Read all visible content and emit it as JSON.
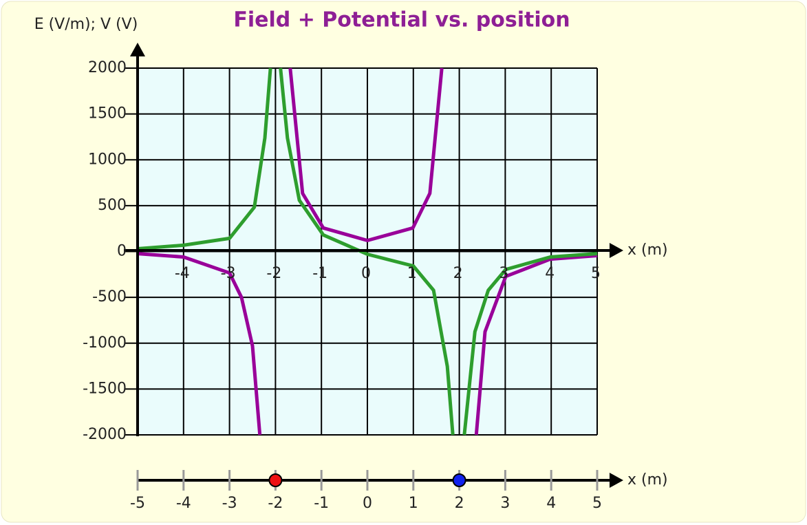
{
  "chart_data": {
    "type": "line",
    "title": "Field + Potential vs. position",
    "y_label": "E (V/m); V (V)",
    "x_label": "x (m)",
    "xlim": [
      -5,
      5
    ],
    "ylim": [
      -2000,
      2000
    ],
    "xticks": [
      -4,
      -3,
      -2,
      -1,
      0,
      1,
      2,
      3,
      4,
      5
    ],
    "yticks": [
      -2000,
      -1500,
      -1000,
      -500,
      0,
      500,
      1000,
      1500,
      2000
    ],
    "grid": true,
    "series": [
      {
        "color": "#990099",
        "x": [
          -5,
          -4,
          -3,
          -2.74,
          -2.5,
          -2.34,
          -2.0,
          -1.68,
          -1.41,
          -0.96,
          0,
          0.99,
          1.36,
          1.62,
          2.0,
          2.37,
          2.56,
          3.01,
          3.98,
          5
        ],
        "values": [
          -23,
          -60,
          -234,
          -500,
          -1030,
          -2000,
          null,
          2000,
          634,
          257,
          120,
          257,
          634,
          2000,
          null,
          -2000,
          -875,
          -272,
          -83,
          -45
        ]
      },
      {
        "color": "#2e9e2e",
        "x": [
          -5,
          -4,
          -3,
          -2.46,
          -2.23,
          -2.11,
          -2.0,
          -1.89,
          -1.74,
          -1.48,
          -0.96,
          0,
          1,
          1.44,
          1.74,
          1.86,
          2.0,
          2.11,
          2.34,
          2.63,
          3.01,
          3.98,
          5
        ],
        "values": [
          30,
          68,
          143,
          483,
          1238,
          2000,
          null,
          2000,
          1238,
          558,
          181,
          -30,
          -158,
          -423,
          -1253,
          -2000,
          null,
          -2000,
          -875,
          -423,
          -196,
          -60,
          -23
        ]
      }
    ],
    "number_line": {
      "label": "x (m)",
      "ticks": [
        -5,
        -4,
        -3,
        -2,
        -1,
        0,
        1,
        2,
        3,
        4,
        5
      ],
      "charges": [
        {
          "x": -2,
          "color": "#ee1111"
        },
        {
          "x": 2,
          "color": "#1122ee"
        }
      ]
    }
  }
}
